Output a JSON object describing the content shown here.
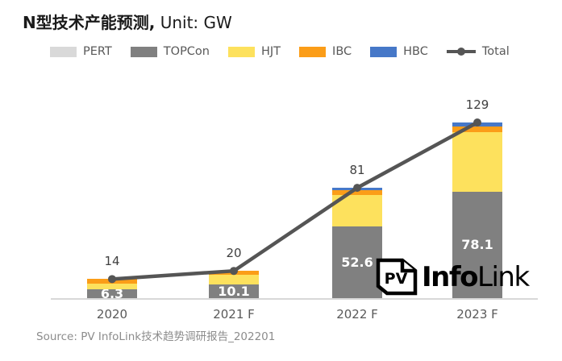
{
  "header": {
    "title_bold": "N型技术产能预测,",
    "title_rest": " Unit: GW"
  },
  "chart_data": {
    "type": "bar",
    "stacked": true,
    "title": "N型技术产能预测, Unit: GW",
    "unit": "GW",
    "grid": false,
    "legend_position": "top",
    "ylim": [
      0,
      140
    ],
    "categories": [
      "2020",
      "2021 F",
      "2022 F",
      "2023 F"
    ],
    "series": [
      {
        "name": "PERT",
        "color": "#D9D9D9",
        "values": [
          0,
          0,
          0,
          0
        ]
      },
      {
        "name": "TOPCon",
        "color": "#808080",
        "values": [
          6.3,
          10.1,
          52.6,
          78.1
        ]
      },
      {
        "name": "HJT",
        "color": "#FDE15D",
        "values": [
          4.2,
          7.0,
          23.4,
          43.9
        ]
      },
      {
        "name": "IBC",
        "color": "#FB9D18",
        "values": [
          3.5,
          2.9,
          3.0,
          4.0
        ]
      },
      {
        "name": "HBC",
        "color": "#4678C8",
        "values": [
          0,
          0,
          2.0,
          3.0
        ]
      }
    ],
    "line_series": {
      "name": "Total",
      "color": "#555555",
      "values": [
        14,
        20,
        81,
        129
      ]
    },
    "total_labels": [
      "14",
      "20",
      "81",
      "129"
    ],
    "bar_value_labels": {
      "series": "TOPCon",
      "labels": [
        "6.3",
        "10.1",
        "52.6",
        "78.1"
      ]
    }
  },
  "logo": {
    "icon_text": "PV",
    "name_bold": "Info",
    "name_rest": "Link"
  },
  "source": {
    "text": "Source: PV InfoLink技术趋势调研报告_202201"
  }
}
